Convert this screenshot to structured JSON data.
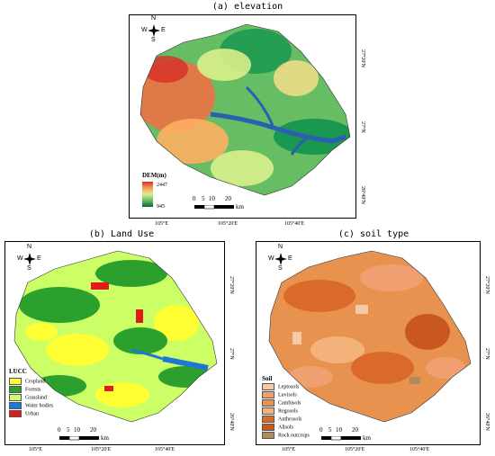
{
  "panels": {
    "elevation": {
      "title": "(a) elevation",
      "legend_title": "DEM(m)",
      "legend_max": "2447",
      "legend_min": "945",
      "ticks_bottom": [
        "105°E",
        "105°20'E",
        "105°40'E"
      ],
      "ticks_right": [
        "27°20'N",
        "27°N",
        "26°40'N"
      ],
      "scale_numbers": [
        "0",
        "5",
        "10",
        "20"
      ],
      "scale_unit": "km",
      "colors": [
        "#006837",
        "#1a9850",
        "#66bd63",
        "#d9ef8b",
        "#fee08b",
        "#fdae61",
        "#f46d43",
        "#d73027"
      ],
      "water_color": "#2b5fb3"
    },
    "landuse": {
      "title": "(b) Land Use",
      "legend_title": "LUCC",
      "legend": [
        {
          "label": "Cropland",
          "color": "#ffff33"
        },
        {
          "label": "Forests",
          "color": "#2ca02c"
        },
        {
          "label": "Grassland",
          "color": "#ccff66"
        },
        {
          "label": "Water bodies",
          "color": "#1f77d4"
        },
        {
          "label": "Urban",
          "color": "#e31a1c"
        }
      ],
      "ticks_bottom": [
        "105°E",
        "105°20'E",
        "105°40'E"
      ],
      "ticks_right": [
        "27°20'N",
        "27°N",
        "26°40'N"
      ],
      "scale_numbers": [
        "0",
        "5",
        "10",
        "20"
      ],
      "scale_unit": "km"
    },
    "soil": {
      "title": "(c) soil type",
      "legend_title": "Soil",
      "legend": [
        {
          "label": "Leptosols",
          "color": "#f6c9a6"
        },
        {
          "label": "Luvisols",
          "color": "#f0a070"
        },
        {
          "label": "Cambisols",
          "color": "#e8924f"
        },
        {
          "label": "Regosols",
          "color": "#f2b27a"
        },
        {
          "label": "Anthrosols",
          "color": "#d96a2b"
        },
        {
          "label": "Alisols",
          "color": "#c9581f"
        },
        {
          "label": "Rock outcrops",
          "color": "#b08b5a"
        }
      ],
      "ticks_bottom": [
        "105°E",
        "105°20'E",
        "105°40'E"
      ],
      "ticks_right": [
        "27°20'N",
        "27°N",
        "26°40'N"
      ],
      "scale_numbers": [
        "0",
        "5",
        "10",
        "20"
      ],
      "scale_unit": "km"
    }
  },
  "compass": {
    "n": "N",
    "s": "S",
    "e": "E",
    "w": "W"
  }
}
